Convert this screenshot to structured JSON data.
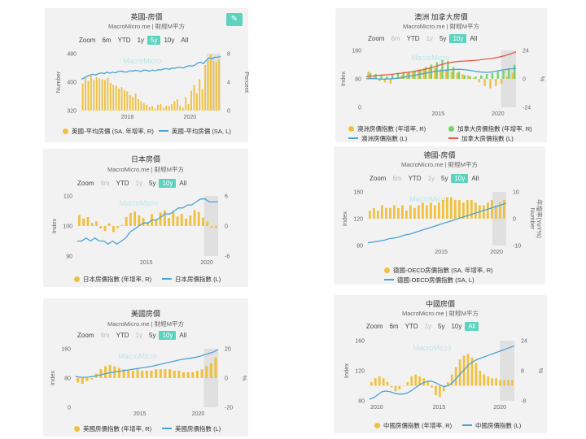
{
  "colors": {
    "bar": "#f0c040",
    "line": "#4ba3d6",
    "line2": "#e45b4b",
    "bar2": "#76d36b",
    "accent": "#5dd3bf"
  },
  "zoom_label": "Zoom",
  "watermark": "MacroMicro",
  "charts": [
    {
      "title": "英國-房價",
      "subtitle": "MacroMicro.me | 財經M平方",
      "zoom": {
        "options": [
          "6m",
          "YTD",
          "1y",
          "5y",
          "10y",
          "All"
        ],
        "active": "5y",
        "disabled": []
      },
      "ylabel_left": "Number",
      "ylabel_right": "Percent",
      "yticks_left": [
        "480",
        "400",
        "320"
      ],
      "yticks_right": [
        "8",
        "4",
        "0"
      ],
      "xticks": [
        "2018",
        "2020"
      ],
      "legend": [
        {
          "label": "英國-平均房價 (SA, 年增率, R)",
          "kind": "dot",
          "color": "#f0c040"
        },
        {
          "label": "英國-平均房價 (SA, L)",
          "kind": "line",
          "color": "#4ba3d6"
        }
      ],
      "chart_data": {
        "type": "bar+line",
        "series": [
          {
            "name": "英國-平均房價 (SA, 年增率, R)",
            "type": "bar",
            "axis": "right",
            "values": [
              3.8,
              4.6,
              4.2,
              4.9,
              4.3,
              4.7,
              4.5,
              4.4,
              4.3,
              4.6,
              3.9,
              3.6,
              3.5,
              3.1,
              3.3,
              2.9,
              2.7,
              2.2,
              1.9,
              2.4,
              1.6,
              1.3,
              1.0,
              0.8,
              0.5,
              0.6,
              0.3,
              0.8,
              0.9,
              0.4,
              0.7,
              0.6,
              0.9,
              1.3,
              1.6,
              0.7,
              0.4,
              1.9,
              0.9,
              2.8,
              3.6,
              2.4,
              4.4,
              3.0,
              6.4,
              7.1,
              7.9,
              7.0,
              6.8,
              7.2
            ]
          },
          {
            "name": "英國-平均房價 (SA, L)",
            "type": "line",
            "axis": "left",
            "values": [
              408,
              412,
              416,
              420,
              422,
              420,
              424,
              426,
              424,
              428,
              425,
              428,
              426,
              430,
              431,
              429,
              428,
              432,
              431,
              433,
              432,
              430,
              434,
              433,
              431,
              434,
              432,
              435,
              434,
              437,
              438,
              436,
              440,
              439,
              442,
              441,
              440,
              444,
              446,
              445,
              448,
              454,
              456,
              452,
              462,
              468,
              466,
              470,
              470,
              472
            ]
          }
        ],
        "ylim_left": [
          320,
          480
        ],
        "ylim_right": [
          0,
          8
        ]
      }
    },
    {
      "title": "澳洲 加拿大房價",
      "subtitle": "MacroMicro.me | 財經M平方",
      "zoom": {
        "options": [
          "6m",
          "YTD",
          "1y",
          "5y",
          "10y",
          "All"
        ],
        "active": "10y",
        "disabled": [
          "6m",
          "1y"
        ]
      },
      "ylabel_left": "Index",
      "ylabel_right": "%",
      "yticks_left": [
        "160",
        "80",
        "0"
      ],
      "yticks_right": [
        "24",
        "0",
        "-24"
      ],
      "xticks": [
        "2015",
        "2020"
      ],
      "legend": [
        {
          "label": "澳洲房價指數 (年增率, R)",
          "kind": "dot",
          "color": "#f0c040"
        },
        {
          "label": "加拿大房價指數 (年增率, R)",
          "kind": "dot",
          "color": "#76d36b"
        },
        {
          "label": "澳洲房價指數 (L)",
          "kind": "line",
          "color": "#4ba3d6"
        },
        {
          "label": "加拿大房價指數 (L)",
          "kind": "line",
          "color": "#e45b4b"
        }
      ],
      "chart_data": {
        "type": "bar+line",
        "series": [
          {
            "name": "澳洲房價指數 (年增率, R)",
            "type": "bar",
            "axis": "right",
            "values": [
              6,
              2,
              -2,
              -3,
              -4,
              1,
              3,
              5,
              6,
              8,
              9,
              10,
              9,
              8,
              7,
              6,
              5,
              4,
              3,
              1,
              -3,
              -6,
              -8,
              -6,
              -4,
              2,
              5
            ]
          },
          {
            "name": "加拿大房價指數 (年增率, R)",
            "type": "bar",
            "axis": "right",
            "values": [
              5,
              4,
              3,
              2,
              4,
              5,
              6,
              6,
              7,
              8,
              10,
              12,
              14,
              16,
              15,
              10,
              6,
              3,
              2,
              2,
              3,
              4,
              5,
              6,
              7,
              9,
              12
            ]
          },
          {
            "name": "澳洲房價指數 (L)",
            "type": "line",
            "axis": "left",
            "values": [
              80,
              81,
              80,
              79,
              80,
              81,
              83,
              86,
              89,
              92,
              95,
              98,
              101,
              103,
              105,
              106,
              107,
              106,
              104,
              101,
              99,
              98,
              100,
              103,
              106,
              108,
              109
            ]
          },
          {
            "name": "加拿大房價指數 (L)",
            "type": "line",
            "axis": "left",
            "values": [
              86,
              88,
              90,
              91,
              92,
              94,
              96,
              98,
              100,
              103,
              106,
              110,
              115,
              120,
              124,
              127,
              129,
              130,
              131,
              132,
              134,
              136,
              138,
              141,
              145,
              150,
              156
            ]
          }
        ],
        "ylim_left": [
          0,
          160
        ],
        "ylim_right": [
          -24,
          24
        ]
      }
    },
    {
      "title": "日本房價",
      "subtitle": "MacroMicro.me | 財經M平方",
      "zoom": {
        "options": [
          "6m",
          "YTD",
          "1y",
          "5y",
          "10y",
          "All"
        ],
        "active": "10y",
        "disabled": [
          "6m",
          "1y"
        ]
      },
      "ylabel_left": "Index",
      "ylabel_right": "",
      "yticks_left": [
        "110",
        "100",
        "90"
      ],
      "yticks_right": [
        "6",
        "0",
        "-6"
      ],
      "xticks": [
        "2015",
        "2020"
      ],
      "legend": [
        {
          "label": "日本房價指數 (年增率, R)",
          "kind": "dot",
          "color": "#f0c040"
        },
        {
          "label": "日本房價指數 (L)",
          "kind": "line",
          "color": "#4ba3d6"
        }
      ],
      "chart_data": {
        "type": "bar+line",
        "series": [
          {
            "name": "日本房價指數 (年增率, R)",
            "type": "bar",
            "axis": "right",
            "values": [
              2.2,
              1.5,
              1.8,
              0.6,
              0.9,
              -0.5,
              -1,
              0.5,
              -1.2,
              -0.4,
              0.2,
              1.8,
              2.6,
              2.9,
              2.1,
              1.6,
              0.6,
              2.4,
              1.4,
              2.7,
              3.1,
              1.6,
              2.8,
              1.9,
              2.4,
              1.5,
              2.1,
              3.2,
              2.8,
              1.7,
              0.9,
              -0.3,
              -0.4
            ]
          },
          {
            "name": "日本房價指數 (L)",
            "type": "line",
            "axis": "left",
            "values": [
              95,
              95,
              96,
              95,
              96,
              95,
              95,
              94,
              95,
              94,
              95,
              96,
              98,
              99,
              100,
              101,
              101,
              102,
              102,
              103,
              104,
              104,
              105,
              106,
              106,
              107,
              107,
              108,
              109,
              109,
              108,
              108,
              108
            ]
          }
        ],
        "ylim_left": [
          90,
          110
        ],
        "ylim_right": [
          -6,
          6
        ]
      }
    },
    {
      "title": "德國-房價",
      "subtitle": "MacroMicro.me | 財經M平方",
      "zoom": {
        "options": [
          "6m",
          "YTD",
          "1y",
          "5y",
          "10y",
          "All"
        ],
        "active": "10y",
        "disabled": [
          "6m",
          "1y"
        ]
      },
      "ylabel_left": "Index",
      "ylabel_right": "Number",
      "ylabel_right2": "年增率(YoY%)",
      "yticks_left": [
        "160",
        "120",
        "80"
      ],
      "yticks_right": [
        "10",
        "0",
        "-10"
      ],
      "xticks": [
        "2015",
        "2020"
      ],
      "legend": [
        {
          "label": "德國-OECD房價指數 (SA, 年增率, R)",
          "kind": "dot",
          "color": "#f0c040"
        },
        {
          "label": "德國-OECD房價指數 (SA, L)",
          "kind": "line",
          "color": "#4ba3d6"
        }
      ],
      "chart_data": {
        "type": "bar+line",
        "series": [
          {
            "name": "德國-OECD房價指數 (SA, 年增率, R)",
            "type": "bar",
            "axis": "right",
            "values": [
              3,
              4,
              3,
              5,
              4,
              4,
              5,
              4,
              5,
              3,
              5,
              4,
              5,
              6,
              5,
              6,
              5,
              6,
              7,
              8,
              8,
              7,
              7,
              6,
              7,
              7,
              6,
              5,
              5,
              6,
              7,
              5,
              6,
              7
            ]
          },
          {
            "name": "德國-OECD房價指數 (SA, L)",
            "type": "line",
            "axis": "left",
            "values": [
              84,
              85,
              86,
              87,
              88,
              90,
              91,
              92,
              94,
              96,
              97,
              99,
              101,
              103,
              105,
              107,
              109,
              111,
              113,
              115,
              117,
              119,
              121,
              123,
              125,
              127,
              129,
              131,
              133,
              135,
              137,
              139,
              141,
              143
            ]
          }
        ],
        "ylim_left": [
          80,
          160
        ],
        "ylim_right": [
          -10,
          10
        ]
      }
    },
    {
      "title": "美國房價",
      "subtitle": "MacroMicro.me | 財經M平方",
      "zoom": {
        "options": [
          "6m",
          "YTD",
          "1y",
          "5y",
          "10y",
          "All"
        ],
        "active": "10y",
        "disabled": [
          "6m",
          "1y"
        ]
      },
      "ylabel_left": "Index",
      "ylabel_right": "%",
      "yticks_left": [
        "160",
        "80",
        "0"
      ],
      "yticks_right": [
        "20",
        "0",
        "-20"
      ],
      "xticks": [
        "2015",
        "2020"
      ],
      "legend": [
        {
          "label": "美國房價指數 (年增率, R)",
          "kind": "dot",
          "color": "#f0c040"
        },
        {
          "label": "美國房價指數 (L)",
          "kind": "line",
          "color": "#4ba3d6"
        }
      ],
      "chart_data": {
        "type": "bar+line",
        "series": [
          {
            "name": "美國房價指數 (年增率, R)",
            "type": "bar",
            "axis": "right",
            "values": [
              -3,
              -4,
              -2,
              -1,
              3,
              6,
              8,
              9,
              8,
              7,
              6,
              5,
              5,
              6,
              5,
              5,
              5,
              6,
              6,
              6,
              6,
              5,
              5,
              4,
              4,
              4,
              5,
              6,
              8,
              10,
              14
            ]
          },
          {
            "name": "美國房價指數 (L)",
            "type": "line",
            "axis": "left",
            "values": [
              84,
              82,
              82,
              83,
              85,
              88,
              91,
              94,
              96,
              98,
              100,
              102,
              104,
              106,
              108,
              110,
              112,
              115,
              118,
              121,
              124,
              127,
              130,
              132,
              134,
              136,
              139,
              143,
              147,
              151,
              158
            ]
          }
        ],
        "ylim_left": [
          0,
          160
        ],
        "ylim_right": [
          -20,
          20
        ]
      }
    },
    {
      "title": "中國房價",
      "subtitle": "MacroMicro.me | 財經M平方",
      "zoom": {
        "options": [
          "6m",
          "YTD",
          "1y",
          "5y",
          "10y",
          "All"
        ],
        "active": "All",
        "disabled": [
          "1y"
        ]
      },
      "ylabel_left": "Index",
      "ylabel_right": "%",
      "yticks_left": [
        "160",
        "120",
        "80"
      ],
      "yticks_right": [
        "24",
        "8",
        "-8"
      ],
      "xticks": [
        "2010",
        "2015",
        "2020"
      ],
      "legend": [
        {
          "label": "中國房價指數 (年增率, R)",
          "kind": "dot",
          "color": "#f0c040"
        },
        {
          "label": "中國房價指數 (L)",
          "kind": "line",
          "color": "#4ba3d6"
        }
      ],
      "chart_data": {
        "type": "bar+line",
        "series": [
          {
            "name": "中國房價指數 (年增率, R)",
            "type": "bar",
            "axis": "right",
            "values": [
              2,
              4,
              5,
              4,
              2,
              -1,
              -3,
              -2,
              0,
              2,
              5,
              6,
              5,
              4,
              2,
              -1,
              -5,
              -6,
              -3,
              2,
              6,
              10,
              14,
              16,
              17,
              15,
              12,
              8,
              6,
              5,
              4,
              4,
              3,
              3,
              3,
              3
            ]
          },
          {
            "name": "中國房價指數 (L)",
            "type": "line",
            "axis": "left",
            "values": [
              82,
              84,
              88,
              92,
              93,
              92,
              90,
              89,
              89,
              90,
              93,
              97,
              101,
              104,
              106,
              106,
              104,
              101,
              99,
              100,
              104,
              110,
              116,
              122,
              128,
              132,
              135,
              137,
              139,
              141,
              143,
              145,
              147,
              149,
              151,
              153
            ]
          }
        ],
        "ylim_left": [
          80,
          160
        ],
        "ylim_right": [
          -8,
          24
        ]
      }
    }
  ]
}
